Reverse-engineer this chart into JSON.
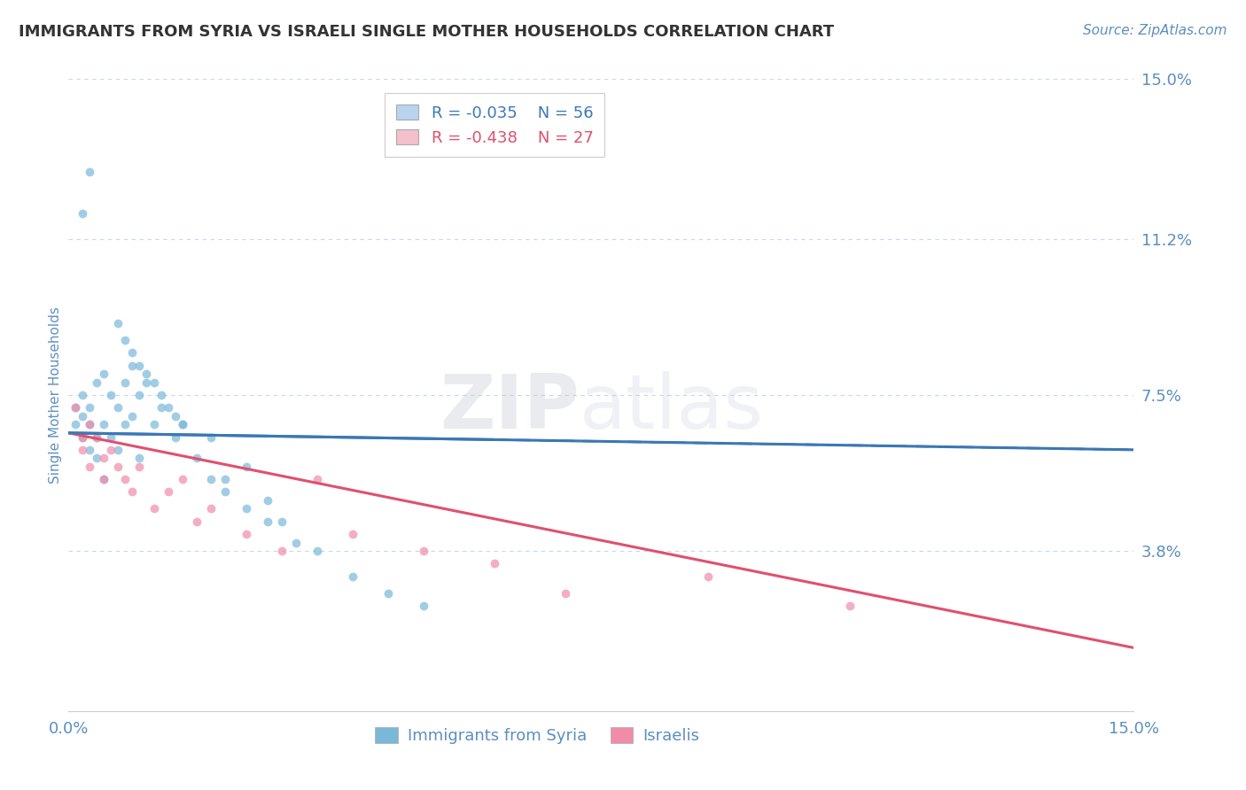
{
  "title": "IMMIGRANTS FROM SYRIA VS ISRAELI SINGLE MOTHER HOUSEHOLDS CORRELATION CHART",
  "source": "Source: ZipAtlas.com",
  "ylabel": "Single Mother Households",
  "xmin": 0.0,
  "xmax": 0.15,
  "ymin": 0.0,
  "ymax": 0.15,
  "yticks": [
    0.0,
    0.038,
    0.075,
    0.112,
    0.15
  ],
  "ytick_labels": [
    "",
    "3.8%",
    "7.5%",
    "11.2%",
    "15.0%"
  ],
  "xticks": [
    0.0,
    0.15
  ],
  "xtick_labels": [
    "0.0%",
    "15.0%"
  ],
  "r1": -0.035,
  "n1": 56,
  "r2": -0.438,
  "n2": 27,
  "series1_label": "Immigrants from Syria",
  "series2_label": "Israelis",
  "color1": "#7ab8d9",
  "color2": "#f08caa",
  "trend1_color": "#3a78b5",
  "trend2_color": "#e0506e",
  "background_color": "#ffffff",
  "grid_color": "#c8d8e8",
  "title_color": "#333333",
  "axis_label_color": "#6090c0",
  "tick_label_color": "#5a8fc0",
  "scatter1_x": [
    0.001,
    0.001,
    0.002,
    0.002,
    0.002,
    0.003,
    0.003,
    0.003,
    0.004,
    0.004,
    0.004,
    0.005,
    0.005,
    0.005,
    0.006,
    0.006,
    0.007,
    0.007,
    0.008,
    0.008,
    0.009,
    0.009,
    0.01,
    0.01,
    0.011,
    0.012,
    0.013,
    0.015,
    0.016,
    0.018,
    0.02,
    0.022,
    0.025,
    0.028,
    0.03,
    0.032,
    0.035,
    0.04,
    0.045,
    0.05,
    0.007,
    0.008,
    0.009,
    0.01,
    0.011,
    0.012,
    0.013,
    0.014,
    0.015,
    0.016,
    0.002,
    0.003,
    0.02,
    0.022,
    0.025,
    0.028
  ],
  "scatter1_y": [
    0.068,
    0.072,
    0.07,
    0.075,
    0.065,
    0.068,
    0.072,
    0.062,
    0.078,
    0.065,
    0.06,
    0.08,
    0.068,
    0.055,
    0.075,
    0.065,
    0.072,
    0.062,
    0.078,
    0.068,
    0.082,
    0.07,
    0.075,
    0.06,
    0.078,
    0.068,
    0.072,
    0.065,
    0.068,
    0.06,
    0.065,
    0.055,
    0.058,
    0.05,
    0.045,
    0.04,
    0.038,
    0.032,
    0.028,
    0.025,
    0.092,
    0.088,
    0.085,
    0.082,
    0.08,
    0.078,
    0.075,
    0.072,
    0.07,
    0.068,
    0.118,
    0.128,
    0.055,
    0.052,
    0.048,
    0.045
  ],
  "scatter2_x": [
    0.001,
    0.002,
    0.002,
    0.003,
    0.003,
    0.004,
    0.005,
    0.005,
    0.006,
    0.007,
    0.008,
    0.009,
    0.01,
    0.012,
    0.014,
    0.016,
    0.018,
    0.02,
    0.025,
    0.03,
    0.035,
    0.04,
    0.05,
    0.06,
    0.07,
    0.09,
    0.11
  ],
  "scatter2_y": [
    0.072,
    0.065,
    0.062,
    0.068,
    0.058,
    0.065,
    0.06,
    0.055,
    0.062,
    0.058,
    0.055,
    0.052,
    0.058,
    0.048,
    0.052,
    0.055,
    0.045,
    0.048,
    0.042,
    0.038,
    0.055,
    0.042,
    0.038,
    0.035,
    0.028,
    0.032,
    0.025
  ],
  "trend1_x0": 0.0,
  "trend1_y0": 0.066,
  "trend1_x1": 0.15,
  "trend1_y1": 0.062,
  "trend2_x0": 0.0,
  "trend2_y0": 0.066,
  "trend2_x1": 0.15,
  "trend2_y1": 0.015,
  "watermark_zip": "ZIP",
  "watermark_atlas": "atlas",
  "legend_box_color1": "#b8d4ee",
  "legend_box_color2": "#f4c0cc"
}
